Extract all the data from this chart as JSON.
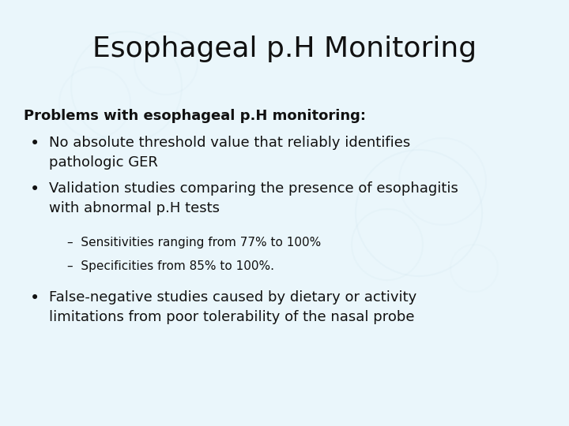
{
  "title": "Esophageal p.H Monitoring",
  "title_fontsize": 26,
  "title_color": "#111111",
  "background_color": "#eaf6fb",
  "text_color": "#111111",
  "bold_heading": "Problems with esophageal p.H monitoring",
  "bold_heading_fontsize": 13,
  "bullet_fontsize": 13,
  "sub_bullet_fontsize": 11,
  "bullets": [
    "No absolute threshold value that reliably identifies\npathologic GER",
    "Validation studies comparing the presence of esophagitis\nwith abnormal p.H tests"
  ],
  "sub_bullets": [
    "–  Sensitivities ranging from 77% to 100%",
    "–  Specificities from 85% to 100%."
  ],
  "bullet3": "False-negative studies caused by dietary or activity\nlimitations from poor tolerability of the nasal probe"
}
